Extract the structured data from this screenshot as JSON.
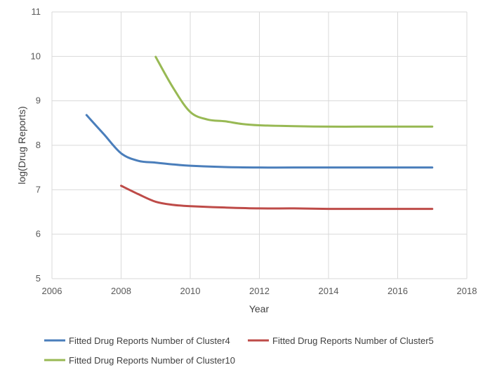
{
  "chart_data": {
    "type": "line",
    "title": "",
    "xlabel": "Year",
    "ylabel": "log(Drug Reports)",
    "xlim": [
      2006,
      2018
    ],
    "ylim": [
      5,
      11
    ],
    "xticks": [
      2006,
      2008,
      2010,
      2012,
      2014,
      2016,
      2018
    ],
    "yticks": [
      5,
      6,
      7,
      8,
      9,
      10,
      11
    ],
    "grid": true,
    "legend_position": "bottom",
    "series": [
      {
        "name": "Fitted Drug Reports Number of Cluster4",
        "color": "#4a7ebb",
        "x": [
          2007,
          2007.5,
          2008,
          2008.5,
          2009,
          2009.5,
          2010,
          2011,
          2012,
          2013,
          2014,
          2015,
          2016,
          2017
        ],
        "y": [
          8.68,
          8.25,
          7.82,
          7.65,
          7.61,
          7.57,
          7.54,
          7.51,
          7.5,
          7.5,
          7.5,
          7.5,
          7.5,
          7.5
        ]
      },
      {
        "name": "Fitted Drug Reports Number of Cluster5",
        "color": "#be4b48",
        "x": [
          2008,
          2008.5,
          2009,
          2009.5,
          2010,
          2011,
          2012,
          2013,
          2014,
          2015,
          2016,
          2017
        ],
        "y": [
          7.09,
          6.9,
          6.73,
          6.66,
          6.63,
          6.6,
          6.58,
          6.58,
          6.57,
          6.57,
          6.57,
          6.57
        ]
      },
      {
        "name": "Fitted Drug Reports Number of Cluster10",
        "color": "#98b954",
        "x": [
          2009,
          2009.5,
          2010,
          2010.5,
          2011,
          2011.5,
          2012,
          2013,
          2014,
          2015,
          2016,
          2017
        ],
        "y": [
          9.99,
          9.3,
          8.75,
          8.58,
          8.54,
          8.48,
          8.45,
          8.43,
          8.42,
          8.42,
          8.42,
          8.42
        ]
      }
    ]
  }
}
